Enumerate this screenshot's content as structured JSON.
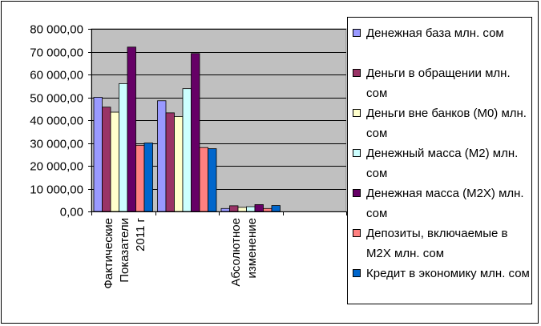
{
  "chart_data": {
    "type": "bar",
    "categories": [
      "Фактические Показатели 2011 г",
      "",
      "Абсолютное изменение"
    ],
    "category_lines": [
      [
        "Фактические",
        "Показатели",
        "2011 г"
      ],
      [],
      [
        "Абсолютное",
        "изменение"
      ]
    ],
    "series": [
      {
        "name": "Денежная база млн. сом",
        "color": "#9999ff",
        "values": [
          50000,
          48500,
          1300
        ]
      },
      {
        "name": "Деньги в обращении млн. сом",
        "color": "#993366",
        "values": [
          45700,
          43200,
          2500
        ]
      },
      {
        "name": "Деньги вне банков (М0) млн. сом",
        "color": "#ffffcc",
        "values": [
          43500,
          41600,
          1800
        ]
      },
      {
        "name": "Денежный масса (М2) млн. сом",
        "color": "#ccffff",
        "values": [
          56000,
          53800,
          2100
        ]
      },
      {
        "name": "Денежная масса (М2Х) млн. сом",
        "color": "#660066",
        "values": [
          72000,
          69200,
          3000
        ]
      },
      {
        "name": "Депозиты, включаемые в М2Х млн. сом",
        "color": "#ff8080",
        "values": [
          29000,
          28000,
          1300
        ]
      },
      {
        "name": "Кредит в экономику млн. сом",
        "color": "#0066cc",
        "values": [
          30000,
          27500,
          2600
        ]
      }
    ],
    "ylim": [
      0,
      80000
    ],
    "yticks": [
      0,
      10000,
      20000,
      30000,
      40000,
      50000,
      60000,
      70000,
      80000
    ],
    "ytick_labels": [
      "0,00",
      "10 000,00",
      "20 000,00",
      "30 000,00",
      "40 000,00",
      "50 000,00",
      "60 000,00",
      "70 000,00",
      "80 000,00"
    ],
    "xlabel": "",
    "ylabel": "",
    "title": "",
    "grid": true,
    "legend_position": "right",
    "plot_background": "#c0c0c0"
  }
}
